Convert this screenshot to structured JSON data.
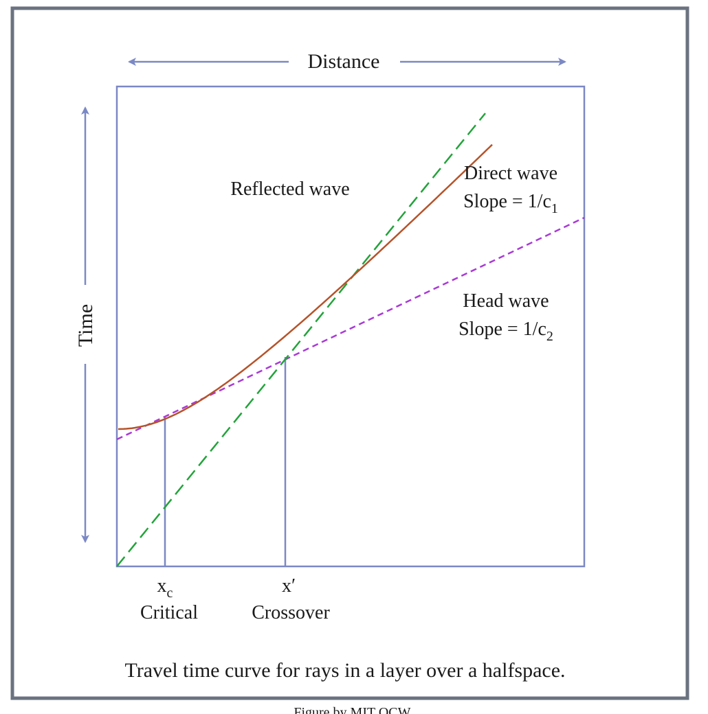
{
  "diagram": {
    "axis_top_label": "Distance",
    "axis_left_label": "Time",
    "curves": {
      "reflected": {
        "label": "Reflected wave",
        "color": "#b5532a"
      },
      "direct": {
        "label": "Direct wave",
        "slope_prefix": "Slope = 1/c",
        "slope_sub": "1",
        "color": "#22a33a"
      },
      "head": {
        "label": "Head wave",
        "slope_prefix": "Slope = 1/c",
        "slope_sub": "2",
        "color": "#a93ad6"
      }
    },
    "markers": {
      "critical": {
        "symbol": "x",
        "symbol_sub": "c",
        "label": "Critical"
      },
      "crossover": {
        "symbol": "x′",
        "label": "Crossover"
      }
    },
    "caption": "Travel time curve for rays in a layer over a halfspace.",
    "credit": "Figure by MIT OCW.",
    "colors": {
      "frame": "#6b7280",
      "axes": "#7b88c4"
    }
  }
}
